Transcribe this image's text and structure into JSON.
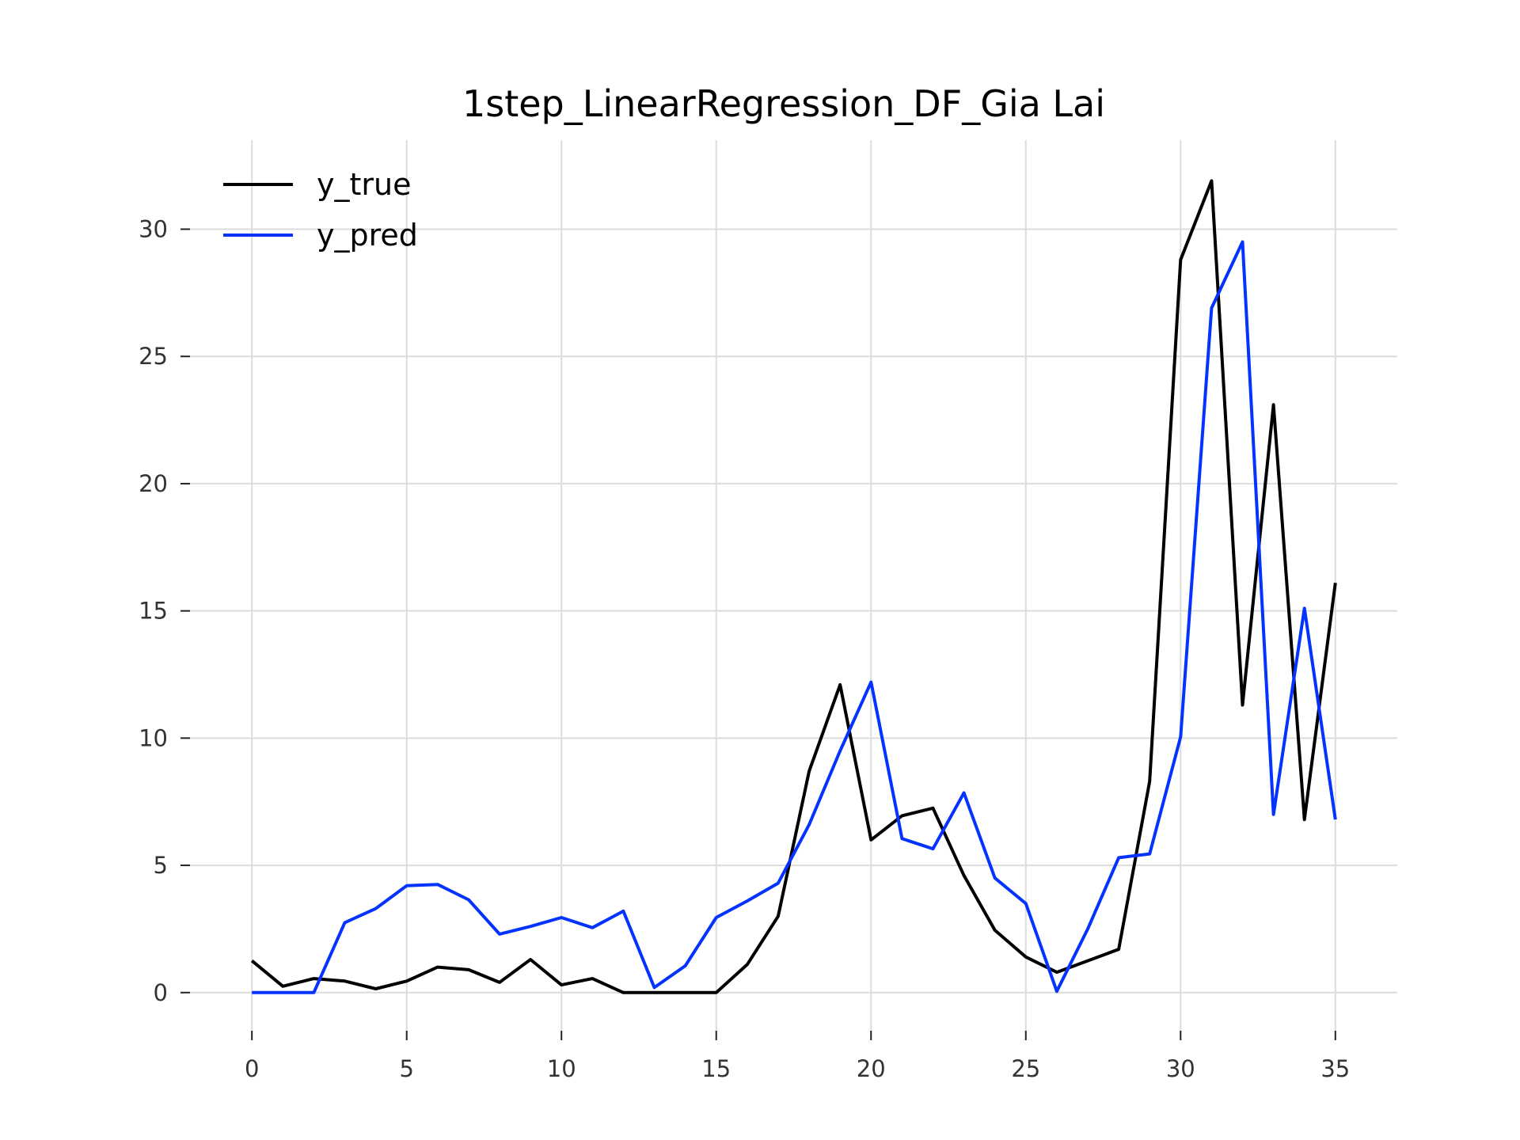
{
  "chart_data": {
    "type": "line",
    "title": "1step_LinearRegression_DF_Gia Lai",
    "xlabel": "",
    "ylabel": "",
    "xlim": [
      -2,
      37
    ],
    "ylim": [
      -1.5,
      33.5
    ],
    "xticks": [
      0,
      5,
      10,
      15,
      20,
      25,
      30,
      35
    ],
    "yticks": [
      0,
      5,
      10,
      15,
      20,
      25,
      30
    ],
    "grid": true,
    "legend_position": "top-left",
    "x": [
      0,
      1,
      2,
      3,
      4,
      5,
      6,
      7,
      8,
      9,
      10,
      11,
      12,
      13,
      14,
      15,
      16,
      17,
      18,
      19,
      20,
      21,
      22,
      23,
      24,
      25,
      26,
      27,
      28,
      29,
      30,
      31,
      32,
      33,
      34,
      35
    ],
    "series": [
      {
        "name": "y_true",
        "color": "#000000",
        "values": [
          1.25,
          0.25,
          0.55,
          0.45,
          0.15,
          0.45,
          1.0,
          0.9,
          0.4,
          1.3,
          0.3,
          0.55,
          0.0,
          0.0,
          0.0,
          0.0,
          1.1,
          3.0,
          8.7,
          12.1,
          6.0,
          6.95,
          7.25,
          4.6,
          2.45,
          1.4,
          0.8,
          1.25,
          1.7,
          8.3,
          28.8,
          31.9,
          11.3,
          23.1,
          6.8,
          16.1
        ]
      },
      {
        "name": "y_pred",
        "color": "#0433ff",
        "values": [
          0.0,
          0.0,
          0.0,
          2.75,
          3.3,
          4.2,
          4.25,
          3.65,
          2.3,
          2.6,
          2.95,
          2.55,
          3.2,
          0.2,
          1.05,
          2.95,
          3.6,
          4.3,
          6.6,
          9.5,
          12.2,
          6.05,
          5.65,
          7.85,
          4.5,
          3.5,
          0.05,
          2.5,
          5.3,
          5.45,
          10.05,
          26.9,
          29.5,
          7.0,
          15.1,
          6.8
        ]
      }
    ]
  }
}
